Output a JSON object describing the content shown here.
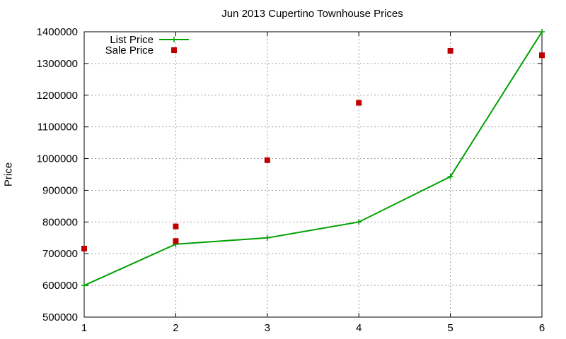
{
  "chart_data": {
    "type": "line",
    "title": "Jun 2013 Cupertino Townhouse Prices",
    "xlabel": "",
    "ylabel": "Price",
    "x": [
      1,
      2,
      3,
      4,
      5,
      6
    ],
    "xlim": [
      1,
      6
    ],
    "ylim": [
      500000,
      1400000
    ],
    "yticks": [
      500000,
      600000,
      700000,
      800000,
      900000,
      1000000,
      1100000,
      1200000,
      1300000,
      1400000
    ],
    "xticks": [
      1,
      2,
      3,
      4,
      5,
      6
    ],
    "grid": true,
    "legend_position": "top-left",
    "series": [
      {
        "name": "List Price",
        "style": "line+plus",
        "color": "#00a000",
        "values": [
          600000,
          730000,
          750000,
          800000,
          943000,
          1400000
        ]
      },
      {
        "name": "Sale Price",
        "style": "square-points",
        "color": "#c00000",
        "values": [
          716000,
          740000,
          786000,
          995000,
          1176000,
          1340000,
          1326000
        ],
        "x": [
          1,
          2,
          2,
          3,
          4,
          5,
          6
        ]
      }
    ]
  }
}
